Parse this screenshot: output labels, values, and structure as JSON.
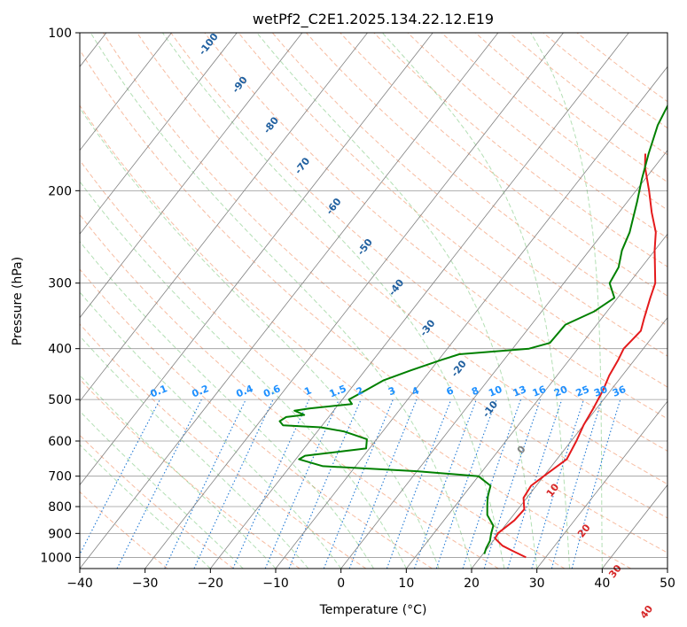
{
  "chart_data": {
    "type": "line",
    "subtype": "skew-t log-p diagram",
    "title": "wetPf2_C2E1.2025.134.22.12.E19",
    "xlabel": "Temperature (°C)",
    "ylabel": "Pressure (hPa)",
    "xlim": [
      -40,
      50
    ],
    "ylim": [
      1050,
      100
    ],
    "y_scale": "log",
    "grid": true,
    "x_ticks": [
      "-40",
      "-30",
      "-20",
      "-10",
      "0",
      "10",
      "20",
      "30",
      "40",
      "50"
    ],
    "y_ticks": [
      "100",
      "200",
      "300",
      "400",
      "500",
      "600",
      "700",
      "800",
      "900",
      "1000"
    ],
    "series": [
      {
        "color": "#e41a1c",
        "points": [
          [
            27.0,
            1000
          ],
          [
            24.0,
            970
          ],
          [
            22.0,
            950
          ],
          [
            20.0,
            920
          ],
          [
            19.8,
            900
          ],
          [
            20.8,
            850
          ],
          [
            21.0,
            810
          ],
          [
            19.5,
            770
          ],
          [
            19.2,
            730
          ],
          [
            20.0,
            700
          ],
          [
            21.5,
            650
          ],
          [
            20.8,
            600
          ],
          [
            20.0,
            560
          ],
          [
            19.5,
            520
          ],
          [
            18.8,
            480
          ],
          [
            18.0,
            450
          ],
          [
            17.5,
            420
          ],
          [
            17.0,
            400
          ],
          [
            17.5,
            370
          ],
          [
            16.5,
            350
          ],
          [
            15.0,
            320
          ],
          [
            14.0,
            300
          ],
          [
            10.0,
            260
          ],
          [
            8.0,
            240
          ],
          [
            5.0,
            220
          ],
          [
            2.0,
            200
          ],
          [
            -1.5,
            180
          ],
          [
            -3.0,
            170
          ]
        ]
      },
      {
        "color": "#008000",
        "points": [
          [
            20.2,
            985
          ],
          [
            19.8,
            960
          ],
          [
            19.5,
            930
          ],
          [
            18.8,
            900
          ],
          [
            18.2,
            870
          ],
          [
            16.0,
            830
          ],
          [
            15.0,
            800
          ],
          [
            14.0,
            770
          ],
          [
            13.5,
            750
          ],
          [
            13.0,
            730
          ],
          [
            10.0,
            700
          ],
          [
            0.0,
            685
          ],
          [
            -15.0,
            670
          ],
          [
            -19.5,
            650
          ],
          [
            -19.0,
            640
          ],
          [
            -10.5,
            620
          ],
          [
            -11.5,
            595
          ],
          [
            -16.0,
            575
          ],
          [
            -20.0,
            565
          ],
          [
            -26.0,
            560
          ],
          [
            -27.0,
            550
          ],
          [
            -26.5,
            540
          ],
          [
            -24.0,
            535
          ],
          [
            -26.0,
            525
          ],
          [
            -24.0,
            520
          ],
          [
            -18.0,
            510
          ],
          [
            -19.0,
            500
          ],
          [
            -17.5,
            480
          ],
          [
            -16.0,
            460
          ],
          [
            -13.0,
            440
          ],
          [
            -9.5,
            420
          ],
          [
            -7.5,
            410
          ],
          [
            2.5,
            400
          ],
          [
            5.0,
            390
          ],
          [
            5.2,
            360
          ],
          [
            8.0,
            340
          ],
          [
            9.5,
            320
          ],
          [
            7.0,
            300
          ],
          [
            6.5,
            280
          ],
          [
            5.0,
            260
          ],
          [
            4.0,
            240
          ],
          [
            1.5,
            210
          ],
          [
            -0.5,
            190
          ],
          [
            -2.5,
            170
          ],
          [
            -4.5,
            150
          ],
          [
            -5.5,
            135
          ],
          [
            -5.0,
            125
          ],
          [
            -3.5,
            115
          ],
          [
            -1.0,
            108
          ],
          [
            0.0,
            100
          ]
        ]
      }
    ],
    "dry_adiabat_labels": [
      "-100",
      "-90",
      "-80",
      "-70",
      "-60",
      "-50",
      "-40",
      "-30",
      "-20",
      "-10",
      "0",
      "10",
      "20",
      "30",
      "40"
    ],
    "mixing_ratio_labels": [
      "0.1",
      "0.2",
      "0.4",
      "0.6",
      "1",
      "1.5",
      "2",
      "3",
      "4",
      "6",
      "8",
      "10",
      "13",
      "16",
      "20",
      "25",
      "30",
      "36"
    ],
    "colors": {
      "dry_adiabats": "#f4a582",
      "moist_adiabats": "#74c476",
      "mixing_ratio": "#1f78d4",
      "isotherms": "#808080",
      "isobars": "#808080",
      "temperature": "#e41a1c",
      "dewpoint": "#008000",
      "adiabat_label_cold": "#1f5f9f",
      "adiabat_label_warm": "#d62728",
      "mixing_label": "#1e90ff"
    }
  }
}
